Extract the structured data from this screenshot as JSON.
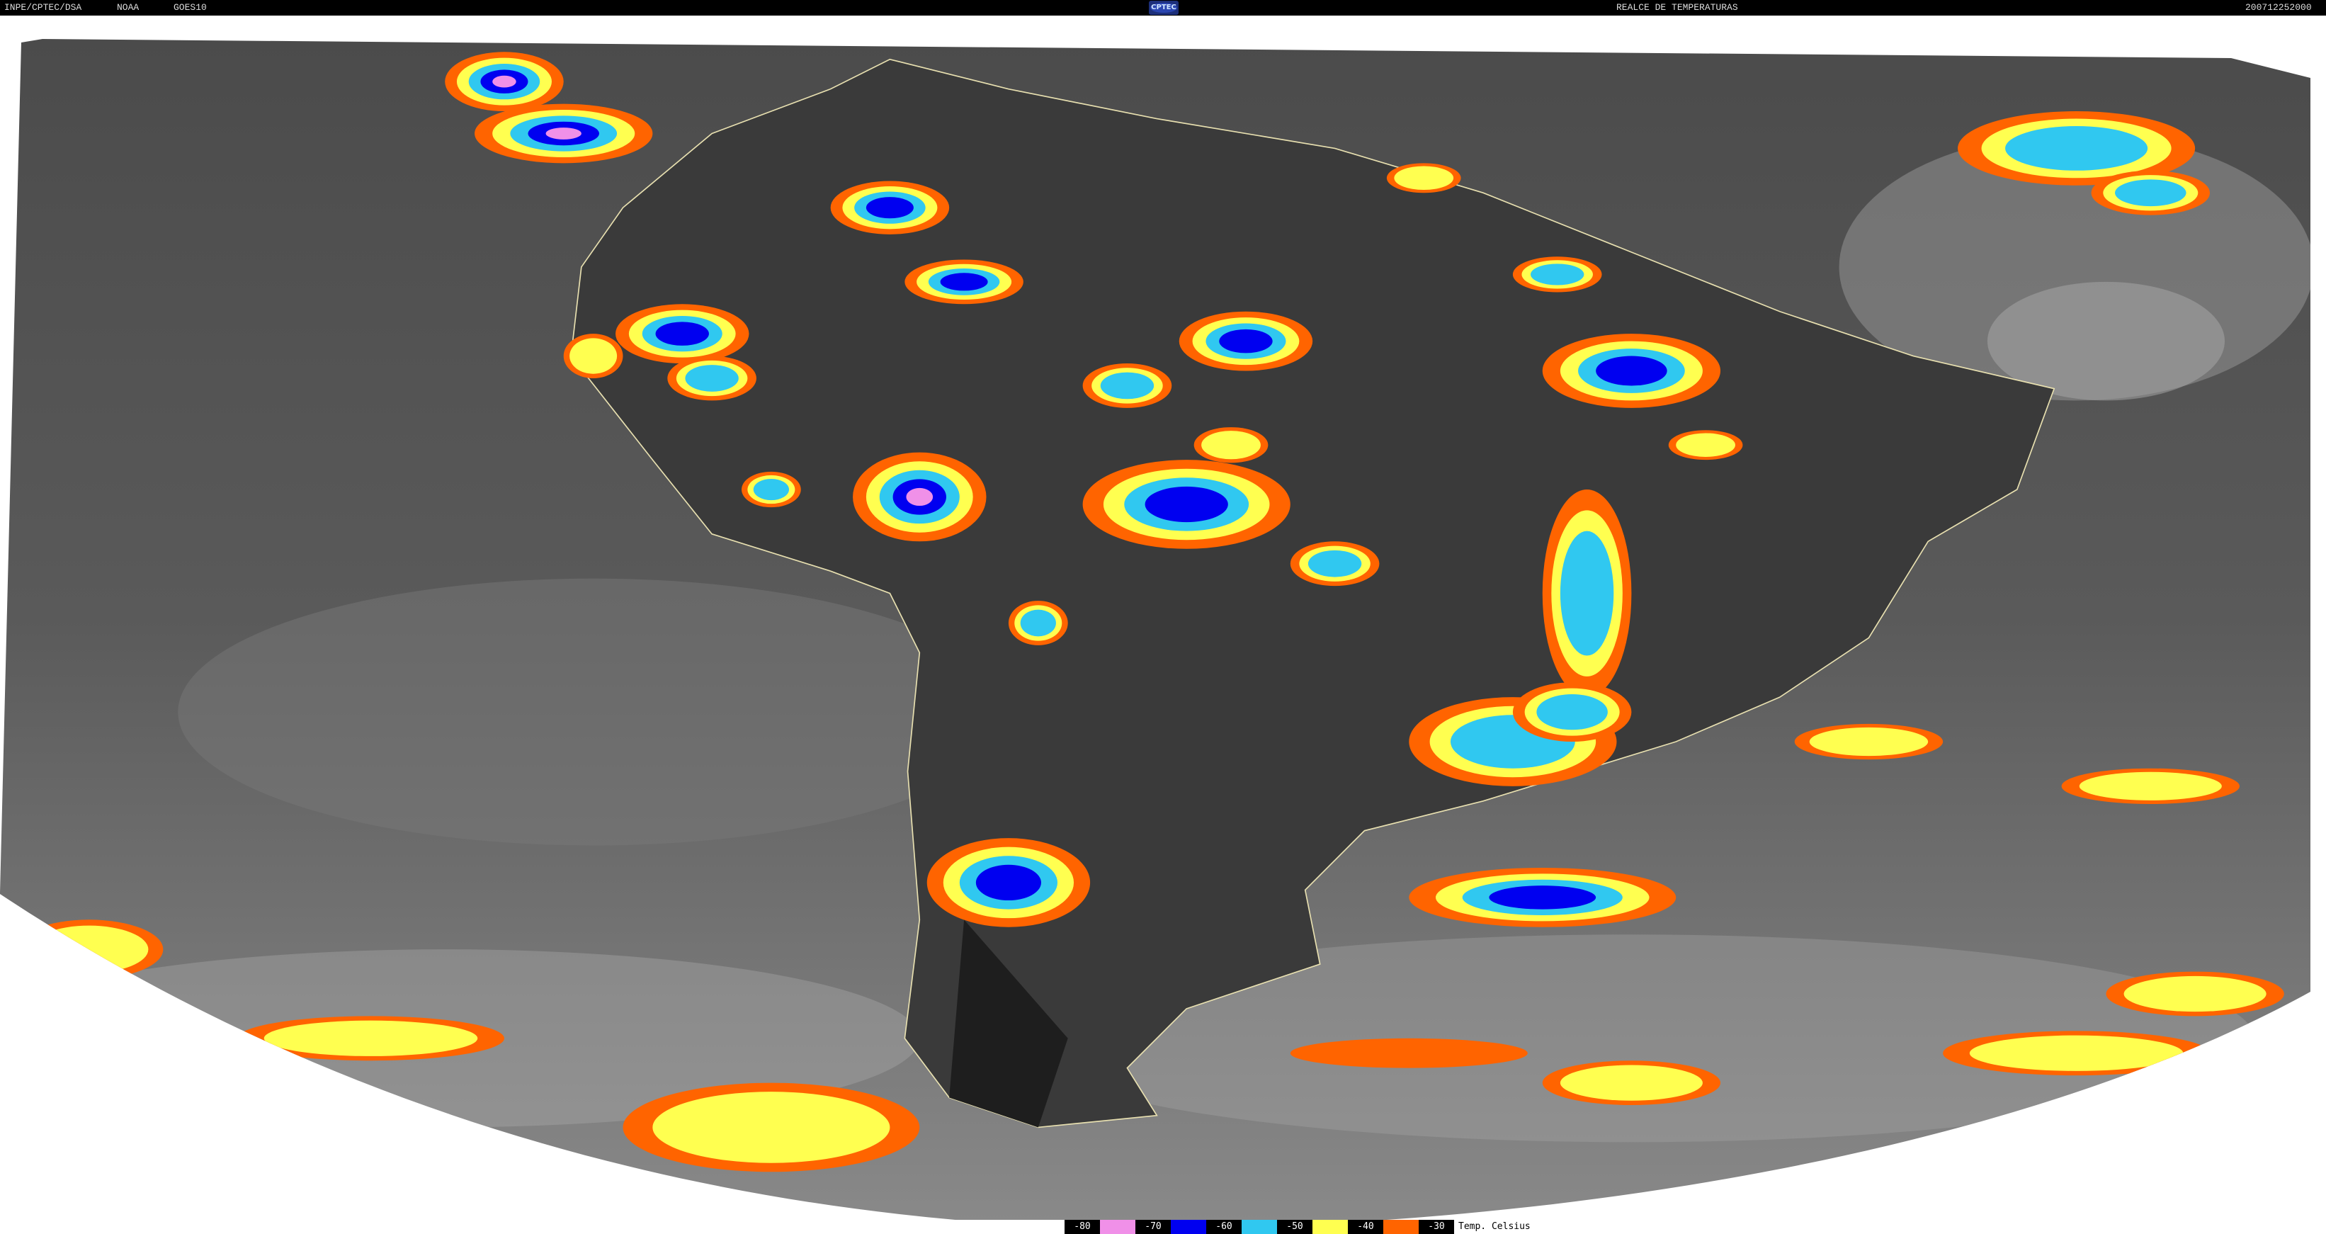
{
  "header": {
    "institution": "INPE/CPTEC/DSA",
    "agency": "NOAA",
    "satellite": "GOES10",
    "logo_text": "CPTEC",
    "product": "REALCE DE TEMPERATURAS",
    "timestamp": "200712252000"
  },
  "legend": {
    "items": [
      {
        "label": "-80",
        "color": "#f090e8"
      },
      {
        "label": "-70",
        "color": "#0000f0"
      },
      {
        "label": "-60",
        "color": "#30c8f0"
      },
      {
        "label": "-50",
        "color": "#ffff50"
      },
      {
        "label": "-40",
        "color": "#ff6400"
      },
      {
        "label": "-30",
        "color": null
      }
    ],
    "unit": "Temp. Celsius"
  }
}
